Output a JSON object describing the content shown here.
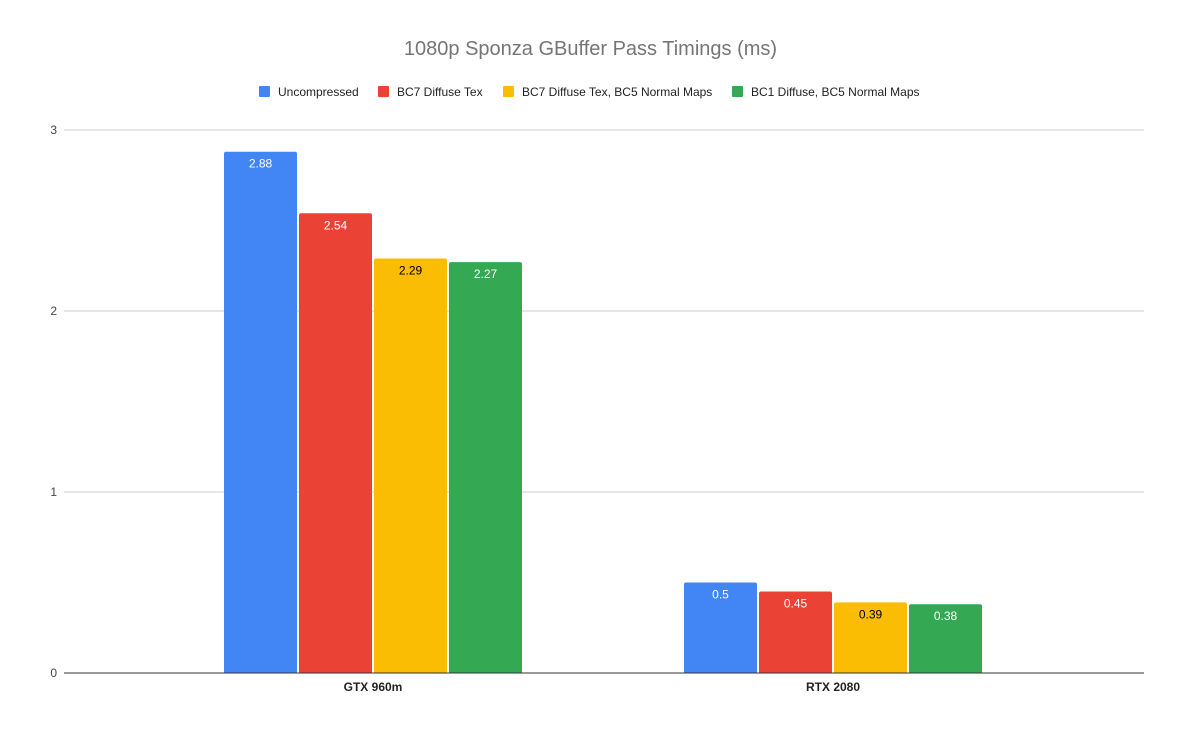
{
  "chart_data": {
    "type": "bar",
    "title": "1080p Sponza GBuffer Pass Timings (ms)",
    "xlabel": "",
    "ylabel": "",
    "categories": [
      "GTX 960m",
      "RTX 2080"
    ],
    "series": [
      {
        "name": "Uncompressed",
        "color": "#4285F4",
        "label_color": "#ffffff",
        "values": [
          2.88,
          0.5
        ]
      },
      {
        "name": "BC7 Diffuse Tex",
        "color": "#EA4335",
        "label_color": "#ffffff",
        "values": [
          2.54,
          0.45
        ]
      },
      {
        "name": "BC7 Diffuse Tex, BC5 Normal Maps",
        "color": "#FBBC04",
        "label_color": "#000000",
        "values": [
          2.29,
          0.39
        ]
      },
      {
        "name": "BC1 Diffuse, BC5 Normal Maps",
        "color": "#34A853",
        "label_color": "#ffffff",
        "values": [
          2.27,
          0.38
        ]
      }
    ],
    "ylim": [
      0,
      3
    ],
    "y_ticks": [
      0,
      1,
      2,
      3
    ],
    "grid": true,
    "legend_position": "top"
  }
}
